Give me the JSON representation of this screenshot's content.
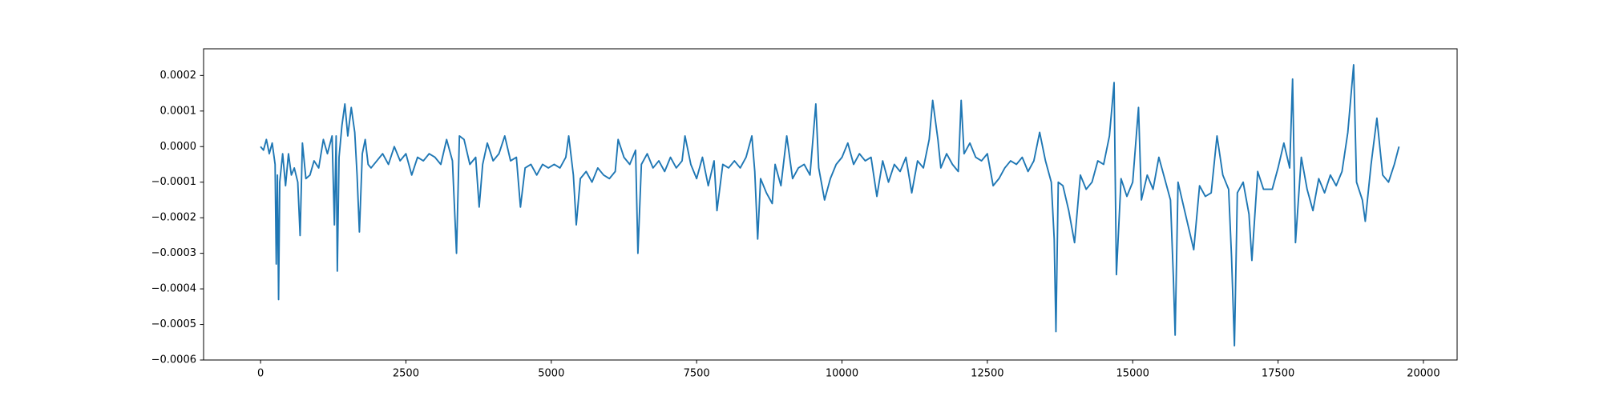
{
  "chart_data": {
    "type": "line",
    "x": [
      0,
      50,
      100,
      150,
      200,
      250,
      270,
      290,
      310,
      330,
      380,
      430,
      480,
      530,
      580,
      640,
      680,
      720,
      780,
      850,
      920,
      1000,
      1080,
      1150,
      1230,
      1270,
      1300,
      1320,
      1350,
      1400,
      1450,
      1500,
      1560,
      1620,
      1660,
      1700,
      1750,
      1800,
      1850,
      1900,
      2000,
      2100,
      2200,
      2300,
      2400,
      2500,
      2600,
      2700,
      2800,
      2900,
      3000,
      3100,
      3200,
      3300,
      3370,
      3420,
      3500,
      3600,
      3700,
      3760,
      3820,
      3900,
      4000,
      4100,
      4200,
      4300,
      4400,
      4470,
      4550,
      4650,
      4750,
      4850,
      4950,
      5050,
      5150,
      5250,
      5300,
      5380,
      5430,
      5500,
      5600,
      5700,
      5800,
      5900,
      6000,
      6100,
      6150,
      6250,
      6350,
      6450,
      6490,
      6550,
      6650,
      6750,
      6850,
      6950,
      7050,
      7150,
      7250,
      7300,
      7400,
      7500,
      7600,
      7700,
      7800,
      7850,
      7950,
      8050,
      8150,
      8250,
      8350,
      8450,
      8500,
      8550,
      8600,
      8700,
      8800,
      8850,
      8950,
      9050,
      9150,
      9250,
      9350,
      9450,
      9550,
      9600,
      9700,
      9800,
      9900,
      10000,
      10100,
      10200,
      10300,
      10400,
      10500,
      10600,
      10700,
      10800,
      10900,
      11000,
      11100,
      11200,
      11300,
      11400,
      11500,
      11560,
      11650,
      11700,
      11800,
      11900,
      12000,
      12050,
      12100,
      12200,
      12300,
      12400,
      12500,
      12600,
      12700,
      12800,
      12900,
      13000,
      13100,
      13200,
      13300,
      13400,
      13500,
      13600,
      13650,
      13680,
      13720,
      13800,
      13900,
      14000,
      14100,
      14200,
      14300,
      14400,
      14500,
      14600,
      14680,
      14720,
      14800,
      14900,
      15000,
      15100,
      15150,
      15250,
      15350,
      15450,
      15550,
      15650,
      15700,
      15730,
      15780,
      15850,
      15950,
      16050,
      16150,
      16250,
      16350,
      16450,
      16550,
      16650,
      16700,
      16750,
      16800,
      16900,
      17000,
      17050,
      17150,
      17250,
      17400,
      17500,
      17600,
      17700,
      17750,
      17800,
      17900,
      18000,
      18100,
      18200,
      18300,
      18400,
      18500,
      18600,
      18700,
      18800,
      18850,
      18950,
      19000,
      19100,
      19200,
      19300,
      19400,
      19500,
      19580
    ],
    "series": [
      {
        "color": "#1f77b4",
        "values": [
          0,
          -1e-05,
          2e-05,
          -2e-05,
          1e-05,
          -5e-05,
          -0.00033,
          -8e-05,
          -0.00043,
          -0.0001,
          -2e-05,
          -0.00011,
          -2e-05,
          -8e-05,
          -6e-05,
          -0.0001,
          -0.00025,
          1e-05,
          -9e-05,
          -8e-05,
          -4e-05,
          -6e-05,
          2e-05,
          -2e-05,
          3e-05,
          -0.00022,
          3e-05,
          -0.00035,
          -3e-05,
          6e-05,
          0.00012,
          3e-05,
          0.00011,
          4e-05,
          -8e-05,
          -0.00024,
          -2e-05,
          2e-05,
          -5e-05,
          -6e-05,
          -4e-05,
          -2e-05,
          -5e-05,
          0,
          -4e-05,
          -2e-05,
          -8e-05,
          -3e-05,
          -4e-05,
          -2e-05,
          -3e-05,
          -5e-05,
          2e-05,
          -4e-05,
          -0.0003,
          3e-05,
          2e-05,
          -5e-05,
          -3e-05,
          -0.00017,
          -5e-05,
          1e-05,
          -4e-05,
          -2e-05,
          3e-05,
          -4e-05,
          -3e-05,
          -0.00017,
          -6e-05,
          -5e-05,
          -8e-05,
          -5e-05,
          -6e-05,
          -5e-05,
          -6e-05,
          -3e-05,
          3e-05,
          -8e-05,
          -0.00022,
          -9e-05,
          -7e-05,
          -0.0001,
          -6e-05,
          -8e-05,
          -9e-05,
          -7e-05,
          2e-05,
          -3e-05,
          -5e-05,
          -1e-05,
          -0.0003,
          -5e-05,
          -2e-05,
          -6e-05,
          -4e-05,
          -7e-05,
          -3e-05,
          -6e-05,
          -4e-05,
          3e-05,
          -5e-05,
          -9e-05,
          -3e-05,
          -0.00011,
          -4e-05,
          -0.00018,
          -5e-05,
          -6e-05,
          -4e-05,
          -6e-05,
          -3e-05,
          3e-05,
          -7e-05,
          -0.00026,
          -9e-05,
          -0.00013,
          -0.00016,
          -5e-05,
          -0.00011,
          3e-05,
          -9e-05,
          -6e-05,
          -5e-05,
          -8e-05,
          0.00012,
          -6e-05,
          -0.00015,
          -9e-05,
          -5e-05,
          -3e-05,
          1e-05,
          -5e-05,
          -2e-05,
          -4e-05,
          -3e-05,
          -0.00014,
          -4e-05,
          -0.0001,
          -5e-05,
          -7e-05,
          -3e-05,
          -0.00013,
          -4e-05,
          -6e-05,
          2e-05,
          0.00013,
          2e-05,
          -6e-05,
          -2e-05,
          -5e-05,
          -7e-05,
          0.00013,
          -2e-05,
          1e-05,
          -3e-05,
          -4e-05,
          -2e-05,
          -0.00011,
          -9e-05,
          -6e-05,
          -4e-05,
          -5e-05,
          -3e-05,
          -7e-05,
          -4e-05,
          4e-05,
          -4e-05,
          -0.0001,
          -0.00026,
          -0.00052,
          -0.0001,
          -0.00011,
          -0.00018,
          -0.00027,
          -8e-05,
          -0.00012,
          -0.0001,
          -4e-05,
          -5e-05,
          3e-05,
          0.00018,
          -0.00036,
          -9e-05,
          -0.00014,
          -0.0001,
          0.00011,
          -0.00015,
          -8e-05,
          -0.00012,
          -3e-05,
          -9e-05,
          -0.00015,
          -0.00037,
          -0.00053,
          -0.0001,
          -0.00015,
          -0.00022,
          -0.00029,
          -0.00011,
          -0.00014,
          -0.00013,
          3e-05,
          -8e-05,
          -0.00012,
          -0.00031,
          -0.00056,
          -0.00013,
          -0.0001,
          -0.00019,
          -0.00032,
          -7e-05,
          -0.00012,
          -0.00012,
          -6e-05,
          1e-05,
          -6e-05,
          0.00019,
          -0.00027,
          -3e-05,
          -0.00012,
          -0.00018,
          -9e-05,
          -0.00013,
          -8e-05,
          -0.00011,
          -7e-05,
          4e-05,
          0.00023,
          -0.0001,
          -0.00015,
          -0.00021,
          -5e-05,
          8e-05,
          -8e-05,
          -0.0001,
          -5e-05,
          0
        ]
      }
    ],
    "xlim": [
      -980,
      20580
    ],
    "ylim": [
      -0.0006,
      0.000275
    ],
    "xticks": [
      0,
      2500,
      5000,
      7500,
      10000,
      12500,
      15000,
      17500,
      20000
    ],
    "yticks": [
      {
        "value": -0.0006,
        "label": "−0.0006"
      },
      {
        "value": -0.0005,
        "label": "−0.0005"
      },
      {
        "value": -0.0004,
        "label": "−0.0004"
      },
      {
        "value": -0.0003,
        "label": "−0.0003"
      },
      {
        "value": -0.0002,
        "label": "−0.0002"
      },
      {
        "value": -0.0001,
        "label": "−0.0001"
      },
      {
        "value": 0,
        "label": "0.0000"
      },
      0.0001,
      0.0002
    ]
  }
}
